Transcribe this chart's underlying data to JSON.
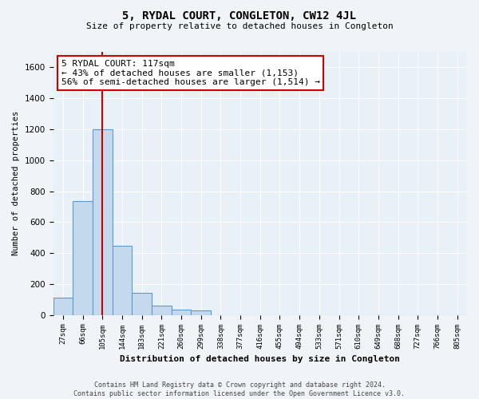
{
  "title": "5, RYDAL COURT, CONGLETON, CW12 4JL",
  "subtitle": "Size of property relative to detached houses in Congleton",
  "xlabel": "Distribution of detached houses by size in Congleton",
  "ylabel": "Number of detached properties",
  "bar_labels": [
    "27sqm",
    "66sqm",
    "105sqm",
    "144sqm",
    "183sqm",
    "221sqm",
    "260sqm",
    "299sqm",
    "338sqm",
    "377sqm",
    "416sqm",
    "455sqm",
    "494sqm",
    "533sqm",
    "571sqm",
    "610sqm",
    "649sqm",
    "688sqm",
    "727sqm",
    "766sqm",
    "805sqm"
  ],
  "bar_values": [
    110,
    735,
    1200,
    445,
    145,
    60,
    33,
    28,
    0,
    0,
    0,
    0,
    0,
    0,
    0,
    0,
    0,
    0,
    0,
    0,
    0
  ],
  "bar_color": "#c5d9ed",
  "bar_edge_color": "#5b9bd5",
  "ylim": [
    0,
    1700
  ],
  "yticks": [
    0,
    200,
    400,
    600,
    800,
    1000,
    1200,
    1400,
    1600
  ],
  "vline_bar_index": 2,
  "vline_color": "#cc0000",
  "annotation_title": "5 RYDAL COURT: 117sqm",
  "annotation_line1": "← 43% of detached houses are smaller (1,153)",
  "annotation_line2": "56% of semi-detached houses are larger (1,514) →",
  "annotation_box_color": "#ffffff",
  "annotation_box_edge": "#cc0000",
  "footer_line1": "Contains HM Land Registry data © Crown copyright and database right 2024.",
  "footer_line2": "Contains public sector information licensed under the Open Government Licence v3.0.",
  "background_color": "#f0f4f8",
  "plot_bg_color": "#e8f0f8",
  "grid_color": "#ffffff"
}
